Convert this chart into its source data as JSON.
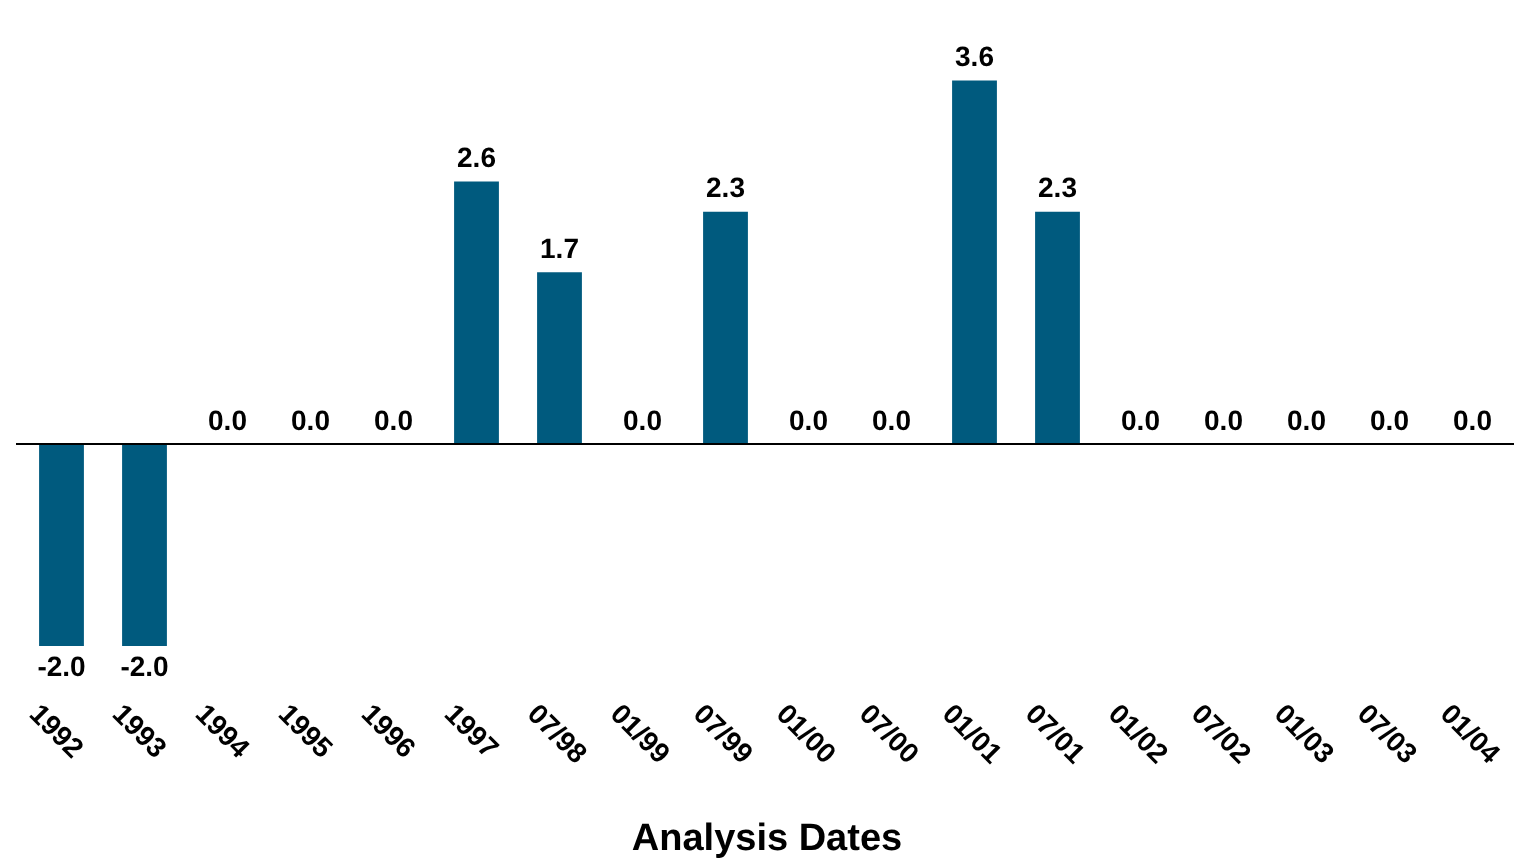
{
  "chart_data": {
    "type": "bar",
    "xlabel": "Analysis Dates",
    "categories": [
      "1992",
      "1993",
      "1994",
      "1995",
      "1996",
      "1997",
      "07/98",
      "01/99",
      "07/99",
      "01/00",
      "07/00",
      "01/01",
      "07/01",
      "01/02",
      "07/02",
      "01/03",
      "07/03",
      "01/04"
    ],
    "values": [
      -2.0,
      -2.0,
      0,
      0,
      0,
      2.6,
      1.7,
      0,
      2.3,
      0,
      0,
      3.6,
      2.3,
      0,
      0,
      0,
      0,
      0
    ],
    "value_labels": [
      "-2.0",
      "-2.0",
      "0.0",
      "0.0",
      "0.0",
      "2.6",
      "1.7",
      "0.0",
      "2.3",
      "0.0",
      "0.0",
      "3.6",
      "2.3",
      "0.0",
      "0.0",
      "0.0",
      "0.0",
      "0.0"
    ],
    "color": "#005a7e"
  }
}
